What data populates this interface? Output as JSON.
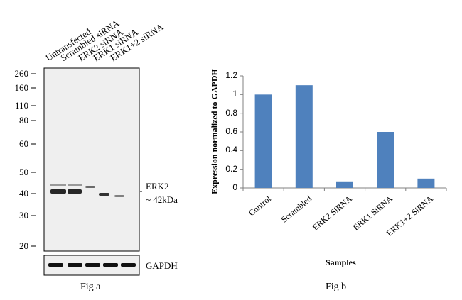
{
  "fig_a": {
    "caption": "Fig a",
    "lanes": [
      "Untransfected",
      "Scrambled siRNA",
      "ERK2 siRNA",
      "ERK1 siRNA",
      "ERK1+2 siRNA"
    ],
    "markers": [
      "260",
      "160",
      "110",
      "80",
      "60",
      "50",
      "40",
      "30",
      "20"
    ],
    "band_label_main": "ERK2",
    "band_label_size": "~ 42kDa",
    "loading_control": "GAPDH"
  },
  "fig_b": {
    "caption": "Fig b"
  },
  "chart_data": {
    "type": "bar",
    "categories": [
      "Control",
      "Scrambled",
      "ERK2 SiRNA",
      "ERK1 SiRNA",
      "ERK1+2 SiRNA"
    ],
    "values": [
      1.0,
      1.1,
      0.07,
      0.6,
      0.1
    ],
    "xlabel": "Samples",
    "ylabel": "Expression normalized to GAPDH",
    "ylim": [
      0,
      1.2
    ],
    "yticks": [
      "0",
      "0.2",
      "0.4",
      "0.6",
      "0.8",
      "1",
      "1.2"
    ],
    "grid": false,
    "bar_color": "#4f81bd"
  }
}
